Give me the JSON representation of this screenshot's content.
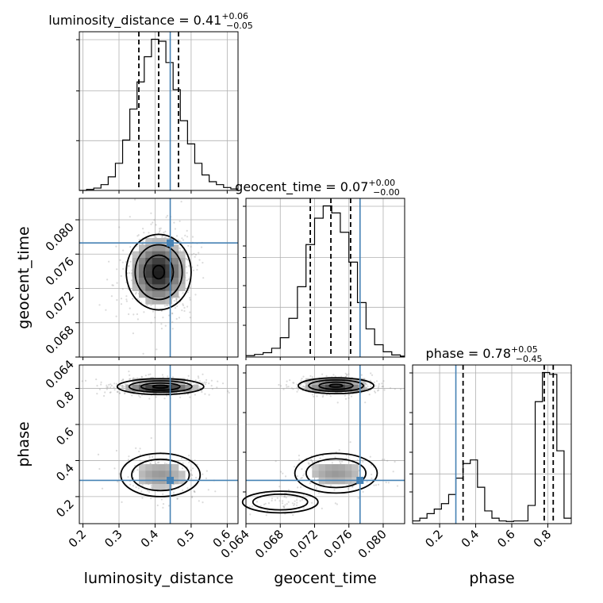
{
  "chart_data": {
    "type": "corner",
    "parameters": [
      "luminosity_distance",
      "geocent_time",
      "phase"
    ],
    "truths": {
      "luminosity_distance": 0.442,
      "geocent_time": 0.0773,
      "phase": 0.29
    },
    "colors": {
      "truth": "#4682b4",
      "density": "#000000",
      "grid": "#b0b0b0"
    },
    "grid": true,
    "panels": {
      "luminosity_distance": {
        "title_main": "luminosity_distance = 0.41",
        "title_sup": "+0.06",
        "title_sub": "−0.05",
        "range": [
          0.19,
          0.63
        ],
        "quantiles": [
          0.355,
          0.41,
          0.465
        ],
        "hist_edges": [
          0.19,
          0.21,
          0.23,
          0.25,
          0.27,
          0.29,
          0.31,
          0.33,
          0.35,
          0.37,
          0.39,
          0.41,
          0.43,
          0.45,
          0.47,
          0.49,
          0.51,
          0.53,
          0.55,
          0.57,
          0.59,
          0.61,
          0.63
        ],
        "hist_counts": [
          0,
          0.005,
          0.012,
          0.03,
          0.07,
          0.14,
          0.26,
          0.42,
          0.56,
          0.69,
          0.78,
          0.77,
          0.66,
          0.52,
          0.36,
          0.24,
          0.14,
          0.08,
          0.045,
          0.03,
          0.015,
          0.008
        ],
        "ticks": [
          0.2,
          0.3,
          0.4,
          0.5,
          0.6
        ],
        "tick_labels": [
          "0.2",
          "0.3",
          "0.4",
          "0.5",
          "0.6"
        ]
      },
      "geocent_time": {
        "title_main": "geocent_time = 0.07",
        "title_sup": "+0.00",
        "title_sub": "−0.00",
        "range": [
          0.064,
          0.0825
        ],
        "quantiles": [
          0.0715,
          0.0739,
          0.0762
        ],
        "hist_edges": [
          0.064,
          0.065,
          0.066,
          0.067,
          0.068,
          0.069,
          0.07,
          0.071,
          0.072,
          0.073,
          0.074,
          0.075,
          0.076,
          0.077,
          0.078,
          0.079,
          0.08,
          0.081,
          0.082,
          0.0825
        ],
        "hist_counts": [
          0.008,
          0.015,
          0.025,
          0.05,
          0.11,
          0.22,
          0.4,
          0.64,
          0.79,
          0.86,
          0.82,
          0.71,
          0.54,
          0.31,
          0.16,
          0.07,
          0.03,
          0.012,
          0.005
        ],
        "ticks": [
          0.064,
          0.068,
          0.072,
          0.076,
          0.08
        ],
        "tick_labels": [
          "0.064",
          "0.068",
          "0.072",
          "0.076",
          "0.080"
        ]
      },
      "phase": {
        "title_main": "phase = 0.78",
        "title_sup": "+0.05",
        "title_sub": "−0.45",
        "range": [
          0.05,
          0.93
        ],
        "quantiles": [
          0.33,
          0.78,
          0.83
        ],
        "hist_edges": [
          0.05,
          0.09,
          0.13,
          0.17,
          0.21,
          0.25,
          0.29,
          0.33,
          0.37,
          0.41,
          0.45,
          0.49,
          0.53,
          0.57,
          0.61,
          0.65,
          0.69,
          0.73,
          0.77,
          0.81,
          0.85,
          0.89,
          0.93
        ],
        "hist_counts": [
          0.015,
          0.03,
          0.055,
          0.08,
          0.11,
          0.16,
          0.25,
          0.33,
          0.35,
          0.2,
          0.07,
          0.03,
          0.015,
          0.012,
          0.015,
          0.015,
          0.1,
          0.67,
          0.83,
          0.82,
          0.4,
          0.03
        ],
        "ticks": [
          0.2,
          0.4,
          0.6,
          0.8
        ],
        "tick_labels": [
          "0.2",
          "0.4",
          "0.6",
          "0.8"
        ]
      }
    },
    "densities": [
      {
        "x": "luminosity_distance",
        "y": "geocent_time",
        "modes": [
          {
            "cx": 0.41,
            "cy": 0.0739,
            "sx": 0.045,
            "sy": 0.0022,
            "w": 1.0
          }
        ]
      },
      {
        "x": "luminosity_distance",
        "y": "phase",
        "modes": [
          {
            "cx": 0.415,
            "cy": 0.81,
            "sx": 0.06,
            "sy": 0.022,
            "w": 1.0
          },
          {
            "cx": 0.415,
            "cy": 0.32,
            "sx": 0.055,
            "sy": 0.06,
            "w": 0.42
          }
        ]
      },
      {
        "x": "geocent_time",
        "y": "phase",
        "modes": [
          {
            "cx": 0.0745,
            "cy": 0.815,
            "sx": 0.0022,
            "sy": 0.022,
            "w": 1.0
          },
          {
            "cx": 0.0745,
            "cy": 0.33,
            "sx": 0.0024,
            "sy": 0.055,
            "w": 0.42
          },
          {
            "cx": 0.068,
            "cy": 0.17,
            "sx": 0.0022,
            "sy": 0.03,
            "w": 0.12
          }
        ]
      }
    ]
  },
  "labels": {
    "x_luminosity_distance": "luminosity_distance",
    "x_geocent_time": "geocent_time",
    "x_phase": "phase",
    "y_geocent_time": "geocent_time",
    "y_phase": "phase"
  }
}
